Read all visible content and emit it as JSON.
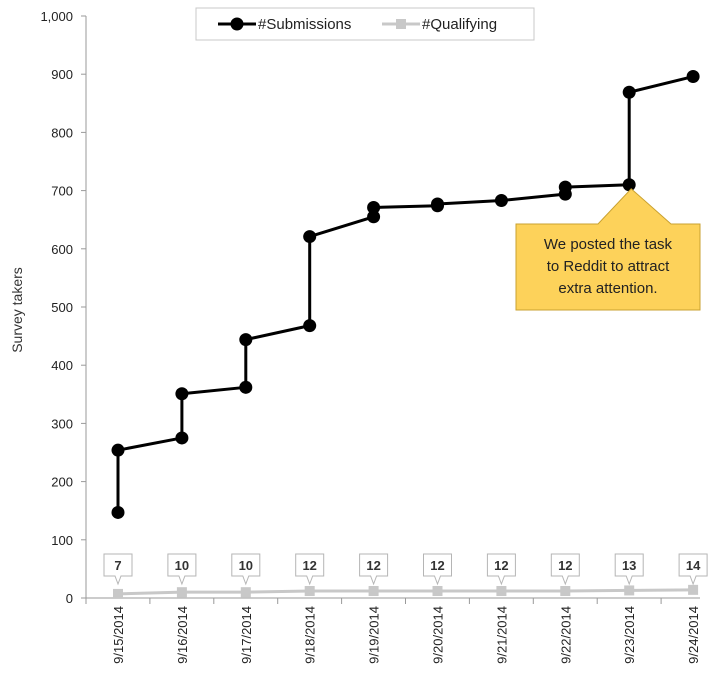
{
  "chart_data": {
    "type": "line",
    "title": "",
    "ylabel": "Survey takers",
    "xlabel": "",
    "ylim": [
      0,
      1000
    ],
    "yticks": [
      0,
      100,
      200,
      300,
      400,
      500,
      600,
      700,
      800,
      900,
      1000
    ],
    "ytick_labels": [
      "0",
      "100",
      "200",
      "300",
      "400",
      "500",
      "600",
      "700",
      "800",
      "900",
      "1,000"
    ],
    "categories": [
      "9/15/2014",
      "9/16/2014",
      "9/17/2014",
      "9/18/2014",
      "9/19/2014",
      "9/20/2014",
      "9/21/2014",
      "9/22/2014",
      "9/23/2014",
      "9/24/2014"
    ],
    "grid": false,
    "legend_position": "top-center",
    "series": [
      {
        "name": "#Submissions",
        "color": "#000000",
        "marker": "circle",
        "points": [
          [
            0,
            147
          ],
          [
            0,
            254
          ],
          [
            1,
            275
          ],
          [
            1,
            351
          ],
          [
            2,
            362
          ],
          [
            2,
            444
          ],
          [
            3,
            468
          ],
          [
            3,
            621
          ],
          [
            4,
            655
          ],
          [
            4,
            671
          ],
          [
            5,
            674
          ],
          [
            5,
            677
          ],
          [
            6,
            683
          ],
          [
            7,
            694
          ],
          [
            7,
            706
          ],
          [
            8,
            710
          ],
          [
            8,
            869
          ],
          [
            9,
            896
          ]
        ]
      },
      {
        "name": "#Qualifying",
        "color": "#c8c8c8",
        "marker": "square",
        "points": [
          [
            0,
            7
          ],
          [
            1,
            10
          ],
          [
            2,
            10
          ],
          [
            3,
            12
          ],
          [
            4,
            12
          ],
          [
            5,
            12
          ],
          [
            6,
            12
          ],
          [
            7,
            12
          ],
          [
            8,
            13
          ],
          [
            9,
            14
          ]
        ],
        "data_labels": [
          "7",
          "10",
          "10",
          "12",
          "12",
          "12",
          "12",
          "12",
          "13",
          "14"
        ]
      }
    ],
    "annotation": {
      "text_lines": [
        "We posted the task",
        "to Reddit to attract",
        "extra attention."
      ],
      "target": [
        8,
        710
      ],
      "fill_color": "#fdd25a",
      "border_color": "#c9a130"
    }
  }
}
